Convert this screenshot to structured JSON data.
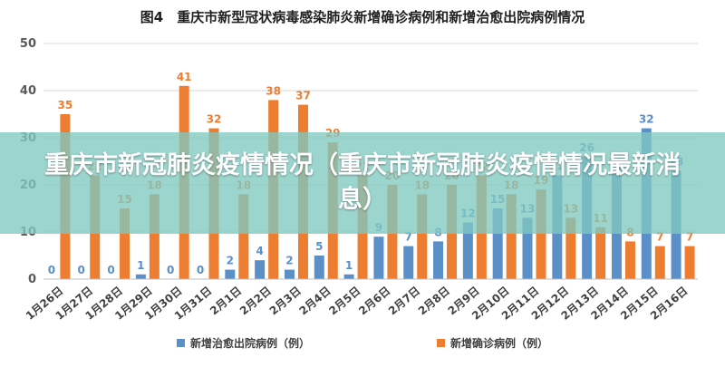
{
  "chart_data": {
    "type": "bar",
    "title": "图4　重庆市新型冠状病毒感染肺炎新增确诊病例和新增治愈出院病例情况",
    "categories": [
      "1月26日",
      "1月27日",
      "1月28日",
      "1月29日",
      "1月30日",
      "1月31日",
      "2月1日",
      "2月2日",
      "2月3日",
      "2月4日",
      "2月5日",
      "2月6日",
      "2月7日",
      "2月8日",
      "2月9日",
      "2月10日",
      "2月11日",
      "2月12日",
      "2月13日",
      "2月14日",
      "2月15日",
      "2月16日"
    ],
    "series": [
      {
        "name": "新增治愈出院病例（例）",
        "color": "#5b8fc7",
        "values": [
          0,
          0,
          0,
          1,
          0,
          0,
          2,
          4,
          2,
          5,
          1,
          9,
          7,
          8,
          12,
          15,
          13,
          22,
          26,
          24,
          32,
          23
        ]
      },
      {
        "name": "新增确诊病例（例）",
        "color": "#ed7d31",
        "values": [
          35,
          22,
          15,
          18,
          41,
          32,
          18,
          38,
          37,
          29,
          22,
          20,
          18,
          20,
          22,
          18,
          19,
          13,
          11,
          8,
          7,
          7
        ]
      }
    ],
    "ylim": [
      0,
      50
    ],
    "yticks": [
      0,
      10,
      20,
      30,
      40,
      50
    ],
    "grid": true,
    "legend_position": "bottom"
  },
  "banner": {
    "text": "重庆市新冠肺炎疫情情况（重庆市新冠肺炎疫情情况最新消息）"
  }
}
